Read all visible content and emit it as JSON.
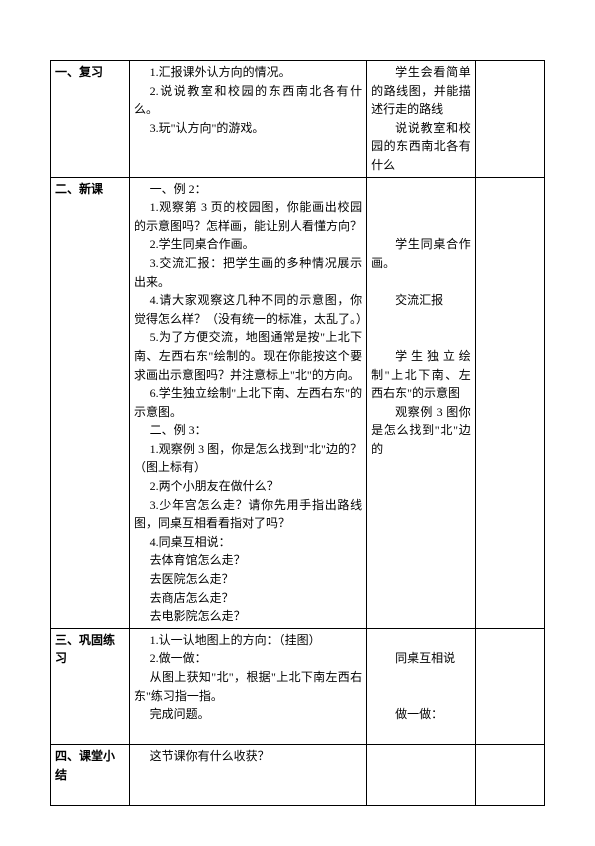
{
  "table": {
    "border_color": "#000000",
    "background_color": "#ffffff",
    "font_family": "SimSun",
    "base_font_size": 12,
    "columns": 4,
    "col_widths_pct": [
      16,
      48,
      22,
      14
    ],
    "rows": [
      {
        "c1": "一、复习",
        "c2_lines": [
          "1.汇报课外认方向的情况。",
          "2.说说教室和校园的东西南北各有什么。",
          "3.玩\"认方向\"的游戏。"
        ],
        "c3_lines": [
          "学生会看简单的路线图，并能描述行走的路线",
          "说说教室和校园的东西南北各有什么"
        ],
        "c4": ""
      },
      {
        "c1": "二、新课",
        "c2_lines": [
          "一、例 2：",
          "1.观察第 3 页的校园图，你能画出校园的示意图吗？怎样画，能让别人看懂方向？",
          "2.学生同桌合作画。",
          "3.交流汇报：把学生画的多种情况展示出来。",
          "4.请大家观察这几种不同的示意图，你觉得怎么样？（没有统一的标准，太乱了。）",
          "5.为了方便交流，地图通常是按\"上北下南、左西右东\"绘制的。现在你能按这个要求画出示意图吗？并注意标上\"北\"的方向。",
          "6.学生独立绘制\"上北下南、左西右东\"的示意图。",
          "二、例 3：",
          "1.观察例 3 图，你是怎么找到\"北\"边的？（图上标有）",
          "2.两个小朋友在做什么？",
          "3.少年宫怎么走？请你先用手指出路线图，同桌互相看看指对了吗？",
          "4.同桌互相说：",
          "去体育馆怎么走？",
          "去医院怎么走？",
          "去商店怎么走？",
          "去电影院怎么走？"
        ],
        "c3_lines": [
          "",
          "",
          "",
          "学生同桌合作画。",
          "",
          "交流汇报",
          "",
          "",
          "学生独立绘制\"上北下南、左西右东\"的示意图",
          "观察例 3 图你是怎么找到\"北\"边的"
        ],
        "c4": ""
      },
      {
        "c1": "三、巩固练习",
        "c2_lines": [
          "1.认一认地图上的方向：（挂图）",
          "2.做一做：",
          "从图上获知\"北\"，根据\"上北下南左西右东\"练习指一指。",
          "完成问题。"
        ],
        "c3_lines": [
          "",
          "同桌互相说",
          "",
          "",
          "做一做："
        ],
        "c4": ""
      },
      {
        "c1": "四、课堂小结",
        "c2_lines": [
          "这节课你有什么收获？"
        ],
        "c3_lines": [
          ""
        ],
        "c4": ""
      }
    ]
  }
}
